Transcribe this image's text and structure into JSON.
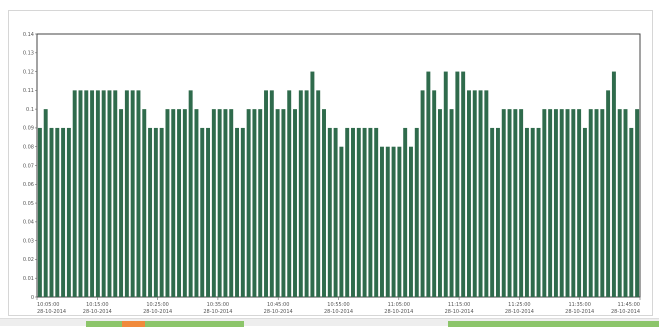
{
  "chart_data": {
    "type": "bar",
    "title": "",
    "xlabel": "",
    "ylabel": "",
    "ylim": [
      0,
      0.14
    ],
    "yticks": [
      "0",
      "0.01",
      "0.02",
      "0.03",
      "0.04",
      "0.05",
      "0.06",
      "0.07",
      "0.08",
      "0.09",
      "0.1",
      "0.11",
      "0.12",
      "0.13",
      "0.14"
    ],
    "xticks": [
      {
        "time": "10:05:00",
        "date": "28-10-2014"
      },
      {
        "time": "10:15:00",
        "date": "28-10-2014"
      },
      {
        "time": "10:25:00",
        "date": "28-10-2014"
      },
      {
        "time": "10:35:00",
        "date": "28-10-2014"
      },
      {
        "time": "10:45:00",
        "date": "28-10-2014"
      },
      {
        "time": "10:55:00",
        "date": "28-10-2014"
      },
      {
        "time": "11:05:00",
        "date": "28-10-2014"
      },
      {
        "time": "11:15:00",
        "date": "28-10-2014"
      },
      {
        "time": "11:25:00",
        "date": "28-10-2014"
      },
      {
        "time": "11:35:00",
        "date": "28-10-2014"
      },
      {
        "time": "11:45:00",
        "date": "28-10-2014"
      }
    ],
    "bar_color": "#2f6b4c",
    "grid": false,
    "values": [
      0.09,
      0.1,
      0.09,
      0.09,
      0.09,
      0.09,
      0.11,
      0.11,
      0.11,
      0.11,
      0.11,
      0.11,
      0.11,
      0.11,
      0.1,
      0.11,
      0.11,
      0.11,
      0.1,
      0.09,
      0.09,
      0.09,
      0.1,
      0.1,
      0.1,
      0.1,
      0.11,
      0.1,
      0.09,
      0.09,
      0.1,
      0.1,
      0.1,
      0.1,
      0.09,
      0.09,
      0.1,
      0.1,
      0.1,
      0.11,
      0.11,
      0.1,
      0.1,
      0.11,
      0.1,
      0.11,
      0.11,
      0.12,
      0.11,
      0.1,
      0.09,
      0.09,
      0.08,
      0.09,
      0.09,
      0.09,
      0.09,
      0.09,
      0.09,
      0.08,
      0.08,
      0.08,
      0.08,
      0.09,
      0.08,
      0.09,
      0.11,
      0.12,
      0.11,
      0.1,
      0.12,
      0.1,
      0.12,
      0.12,
      0.11,
      0.11,
      0.11,
      0.11,
      0.09,
      0.09,
      0.1,
      0.1,
      0.1,
      0.1,
      0.09,
      0.09,
      0.09,
      0.1,
      0.1,
      0.1,
      0.1,
      0.1,
      0.1,
      0.1,
      0.09,
      0.1,
      0.1,
      0.1,
      0.11,
      0.12,
      0.1,
      0.1,
      0.09,
      0.1
    ]
  },
  "timeline": {
    "segments": [
      {
        "color": "#8cc56a",
        "start": 0.13,
        "end": 0.185
      },
      {
        "color": "#f08a3c",
        "start": 0.185,
        "end": 0.22
      },
      {
        "color": "#8cc56a",
        "start": 0.22,
        "end": 0.37
      },
      {
        "color": "#8cc56a",
        "start": 0.68,
        "end": 1.0
      }
    ]
  }
}
